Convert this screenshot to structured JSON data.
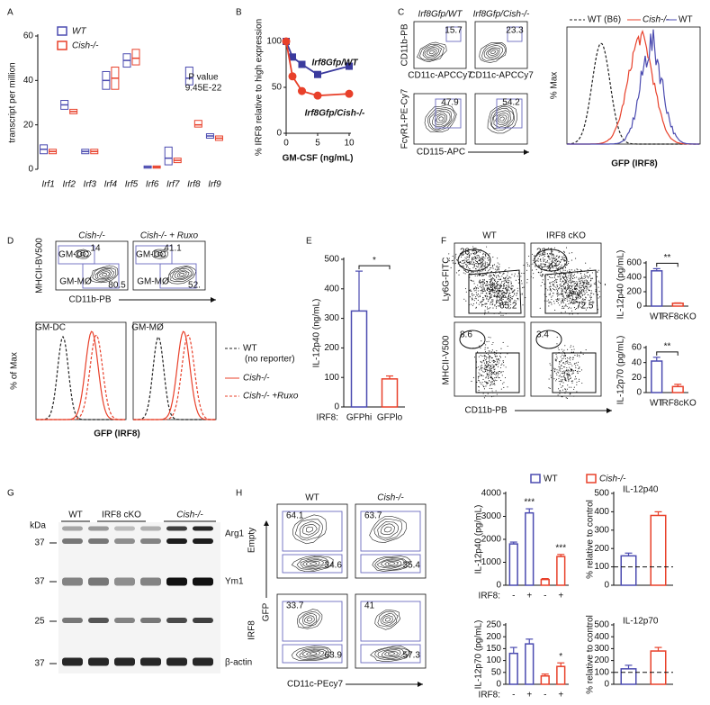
{
  "panel_labels": [
    "A",
    "B",
    "C",
    "D",
    "E",
    "F",
    "G",
    "H"
  ],
  "chart_data": [
    {
      "type": "box",
      "ylabel": "transcript per million",
      "categories": [
        "Irf1",
        "Irf2",
        "Irf3",
        "Irf4",
        "Irf5",
        "Irf6",
        "Irf7",
        "Irf8",
        "Irf9"
      ],
      "category_colors": [
        "#111",
        "#111",
        "#111",
        "#111",
        "#111",
        "#111",
        "#111",
        "#e8402a",
        "#111"
      ],
      "ylim": [
        0,
        60
      ],
      "yticks": [
        0,
        20,
        40,
        60
      ],
      "annotation": [
        "P value",
        "9.45E-22"
      ],
      "series": [
        {
          "name": "WT",
          "color": "#4b4bb0",
          "values": [
            9,
            29,
            8,
            40,
            49,
            1,
            5,
            41,
            15
          ],
          "q1": [
            7,
            27,
            7,
            36,
            46,
            0.5,
            2,
            38,
            14
          ],
          "q3": [
            11,
            31,
            9,
            44,
            52,
            1.5,
            10,
            46,
            16
          ]
        },
        {
          "name": "Cish-/-",
          "color": "#e8402a",
          "values": [
            8,
            26,
            8,
            41,
            50,
            1,
            4,
            20,
            14
          ],
          "q1": [
            7,
            25,
            7,
            36,
            47,
            0.5,
            3,
            19,
            13
          ],
          "q3": [
            9,
            27,
            9,
            46,
            54,
            1.5,
            5,
            22,
            15
          ]
        }
      ]
    },
    {
      "type": "line",
      "xlabel": "GM-CSF (ng/mL)",
      "ylabel": "% IRF8 relative to high expression",
      "x": [
        0,
        1,
        2.5,
        5,
        10
      ],
      "xlim": [
        0,
        10
      ],
      "xticks": [
        0,
        5,
        10
      ],
      "ylim": [
        0,
        100
      ],
      "yticks": [
        0,
        50,
        100
      ],
      "series": [
        {
          "name": "Irf8Gfp/WT",
          "color": "#3b3b9e",
          "marker": "square",
          "values": [
            100,
            83,
            75,
            64,
            73
          ],
          "errors": [
            2,
            2,
            2,
            2,
            4
          ]
        },
        {
          "name": "Irf8Gfp/Cish-/-",
          "color": "#e8402a",
          "marker": "circle",
          "values": [
            100,
            62,
            46,
            41,
            43
          ],
          "errors": [
            2,
            2,
            2,
            2,
            4
          ]
        }
      ]
    },
    {
      "type": "bar",
      "ylabel": "IL-12p40 (ng/mL)",
      "xlabel": "IRF8:",
      "categories": [
        "GFPhi",
        "GFPlo"
      ],
      "values": [
        325,
        95
      ],
      "errors": [
        135,
        10
      ],
      "colors": [
        "#4b4bb0",
        "#e8402a"
      ],
      "ylim": [
        0,
        500
      ],
      "yticks": [
        0,
        100,
        200,
        300,
        400,
        500
      ],
      "annotation": "*"
    },
    {
      "type": "bar",
      "ylabel": "IL-12p40 (pg/mL)",
      "categories": [
        "WT",
        "IRF8cKO"
      ],
      "values": [
        490,
        40
      ],
      "errors": [
        30,
        5
      ],
      "colors": [
        "#4b4bb0",
        "#e8402a"
      ],
      "ylim": [
        0,
        600
      ],
      "yticks": [
        0,
        200,
        400,
        600
      ],
      "annotation": "**"
    },
    {
      "type": "bar",
      "ylabel": "IL-12p70 (pg/mL)",
      "categories": [
        "WT",
        "IRF8cKO"
      ],
      "values": [
        42,
        8
      ],
      "errors": [
        5,
        3
      ],
      "colors": [
        "#4b4bb0",
        "#e8402a"
      ],
      "ylim": [
        0,
        60
      ],
      "yticks": [
        0,
        20,
        40,
        60
      ],
      "annotation": "**"
    },
    {
      "type": "bar",
      "ylabel": "IL-12p40 (pg/mL)",
      "xlabel": "IRF8:",
      "categories": [
        "-",
        "+",
        "-",
        "+"
      ],
      "values": [
        1800,
        3150,
        250,
        1250
      ],
      "errors": [
        80,
        180,
        40,
        90
      ],
      "colors": [
        "#4b4bb0",
        "#4b4bb0",
        "#e8402a",
        "#e8402a"
      ],
      "value_annotations": [
        null,
        "***",
        null,
        "***"
      ],
      "ylim": [
        0,
        4000
      ],
      "yticks": [
        0,
        1000,
        2000,
        3000,
        4000
      ]
    },
    {
      "type": "bar",
      "ylabel": "IL-12p70 (pg/mL)",
      "xlabel": "IRF8:",
      "categories": [
        "-",
        "+",
        "-",
        "+"
      ],
      "values": [
        130,
        170,
        35,
        75
      ],
      "errors": [
        25,
        20,
        8,
        15
      ],
      "colors": [
        "#4b4bb0",
        "#4b4bb0",
        "#e8402a",
        "#e8402a"
      ],
      "value_annotations": [
        null,
        null,
        null,
        "*"
      ],
      "ylim": [
        0,
        250
      ],
      "yticks": [
        0,
        50,
        100,
        150,
        200,
        250
      ]
    },
    {
      "type": "bar",
      "title": "IL-12p40",
      "ylabel": "% relative to control",
      "values": [
        160,
        380
      ],
      "errors": [
        15,
        20
      ],
      "colors": [
        "#4b4bb0",
        "#e8402a"
      ],
      "reference": 100,
      "ylim": [
        0,
        500
      ],
      "yticks": [
        0,
        100,
        200,
        300,
        400,
        500
      ]
    },
    {
      "type": "bar",
      "title": "IL-12p70",
      "ylabel": "% relative to control",
      "values": [
        130,
        280
      ],
      "errors": [
        30,
        30
      ],
      "colors": [
        "#4b4bb0",
        "#e8402a"
      ],
      "reference": 100,
      "ylim": [
        0,
        500
      ],
      "yticks": [
        0,
        100,
        200,
        300,
        400,
        500
      ]
    }
  ],
  "panel_c": {
    "titles": [
      "Irf8Gfp/WT",
      "Irf8Gfp/Cish-/-"
    ],
    "top_y": "CD11b-PB",
    "top_x": "CD11c-APCCy7",
    "top_gates": [
      "15.7",
      "23.3"
    ],
    "bottom_y": "FcγR1-PE-Cy7",
    "bottom_x": "CD115-APC",
    "bottom_gates": [
      "47.9",
      "54.2"
    ],
    "hist_legend": [
      "WT (B6)",
      "Cish-/-",
      "WT"
    ],
    "hist_ylabel": "% Max",
    "hist_xlabel": "GFP (IRF8)"
  },
  "panel_d": {
    "titles": [
      "Cish-/-",
      "Cish-/- + Ruxo"
    ],
    "ylabel": "MHCII-BV500",
    "xlabel": "CD11b-PB",
    "gate_names": [
      "GM-DC",
      "GM-MØ"
    ],
    "gates": [
      [
        "14",
        "80.5"
      ],
      [
        "41.1",
        "52."
      ]
    ],
    "hist_titles": [
      "GM-DC",
      "GM-MØ"
    ],
    "hist_ylabel": "% of Max",
    "hist_xlabel": "GFP (IRF8)",
    "legend": [
      "WT",
      "(no reporter)",
      "Cish-/-",
      "Cish-/- +Ruxo"
    ]
  },
  "panel_f": {
    "titles": [
      "WT",
      "IRF8 cKO"
    ],
    "top_y": "Ly6G-FITC",
    "top_gates": [
      [
        "28.5",
        "65.2"
      ],
      [
        "22.1",
        "72.5"
      ]
    ],
    "bottom_y": "MHCII-V500",
    "bottom_gates": [
      "8.6",
      "3.4"
    ],
    "xlabel": "CD11b-PB"
  },
  "panel_g": {
    "lanes": [
      "WT",
      "IRF8 cKO",
      "Cish-/-"
    ],
    "kda_title": "kDa",
    "kda": [
      "37",
      "37",
      "25",
      "37"
    ],
    "proteins": [
      "Arg1",
      "Ym1",
      "β-actin"
    ]
  },
  "panel_h": {
    "titles": [
      "WT",
      "Cish-/-"
    ],
    "rows": [
      "Empty",
      "IRF8"
    ],
    "ylabel": "GFP",
    "xlabel": "CD11c-PEcy7",
    "gates": [
      [
        "64.1",
        "34.6"
      ],
      [
        "63.7",
        "35.4"
      ],
      [
        "33.7",
        "63.9"
      ],
      [
        "41",
        "57.3"
      ]
    ],
    "legend": [
      "WT",
      "Cish-/-"
    ]
  }
}
